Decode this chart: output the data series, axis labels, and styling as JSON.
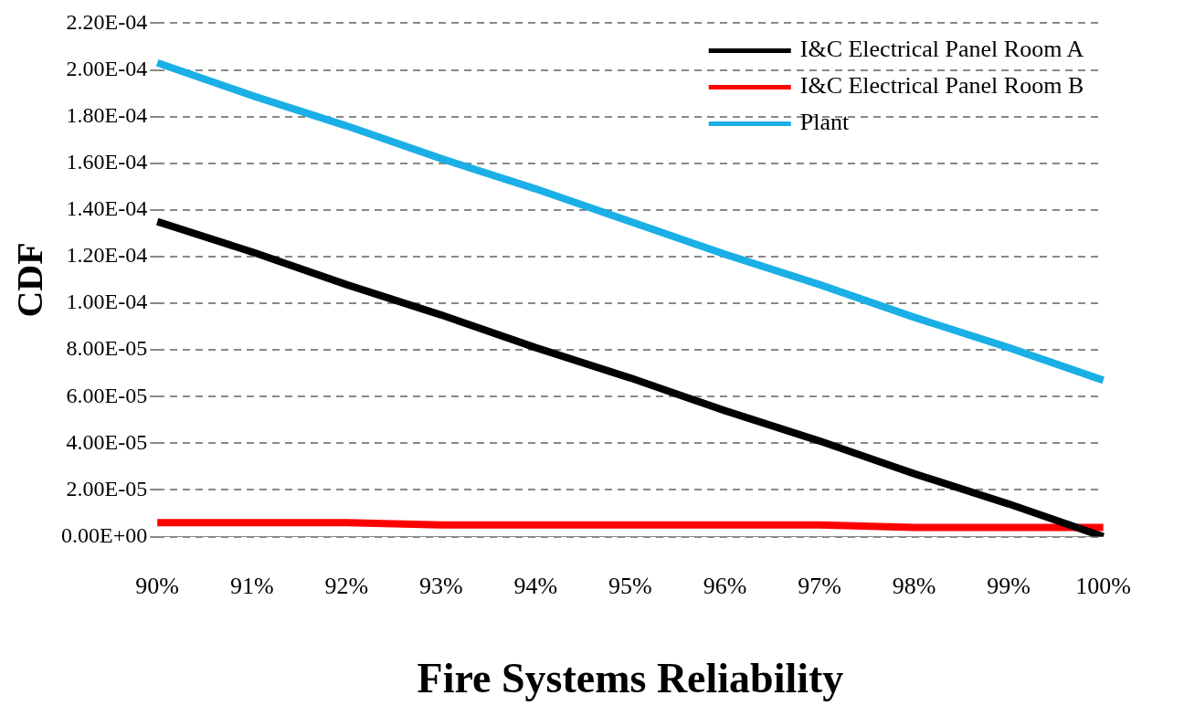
{
  "chart_data": {
    "type": "line",
    "xlabel": "Fire Systems Reliability",
    "ylabel": "CDF",
    "categories": [
      "90%",
      "91%",
      "92%",
      "93%",
      "94%",
      "95%",
      "96%",
      "97%",
      "98%",
      "99%",
      "100%"
    ],
    "series": [
      {
        "name": "I&C Electrical Panel Room A",
        "color": "#000000",
        "values": [
          0.000135,
          0.000122,
          0.000108,
          9.5e-05,
          8.1e-05,
          6.8e-05,
          5.4e-05,
          4.1e-05,
          2.7e-05,
          1.4e-05,
          0
        ]
      },
      {
        "name": "I&C Electrical Panel Room B",
        "color": "#ff0000",
        "values": [
          6e-06,
          6e-06,
          6e-06,
          5e-06,
          5e-06,
          5e-06,
          5e-06,
          5e-06,
          4e-06,
          4e-06,
          4e-06
        ]
      },
      {
        "name": "Plant",
        "color": "#1aafe6",
        "values": [
          0.000203,
          0.000189,
          0.000176,
          0.000162,
          0.000149,
          0.000135,
          0.000121,
          0.000108,
          9.4e-05,
          8.1e-05,
          6.7e-05
        ]
      }
    ],
    "ylim": [
      0,
      0.00022
    ],
    "yticks": [
      {
        "value": 0,
        "label": "0.00E+00"
      },
      {
        "value": 2e-05,
        "label": "2.00E-05"
      },
      {
        "value": 4e-05,
        "label": "4.00E-05"
      },
      {
        "value": 6e-05,
        "label": "6.00E-05"
      },
      {
        "value": 8e-05,
        "label": "8.00E-05"
      },
      {
        "value": 0.0001,
        "label": "1.00E-04"
      },
      {
        "value": 0.00012,
        "label": "1.20E-04"
      },
      {
        "value": 0.00014,
        "label": "1.40E-04"
      },
      {
        "value": 0.00016,
        "label": "1.60E-04"
      },
      {
        "value": 0.00018,
        "label": "1.80E-04"
      },
      {
        "value": 0.0002,
        "label": "2.00E-04"
      },
      {
        "value": 0.00022,
        "label": "2.20E-04"
      }
    ],
    "grid": "y",
    "legend": "top right",
    "marker": "none",
    "line_style": "solid"
  }
}
